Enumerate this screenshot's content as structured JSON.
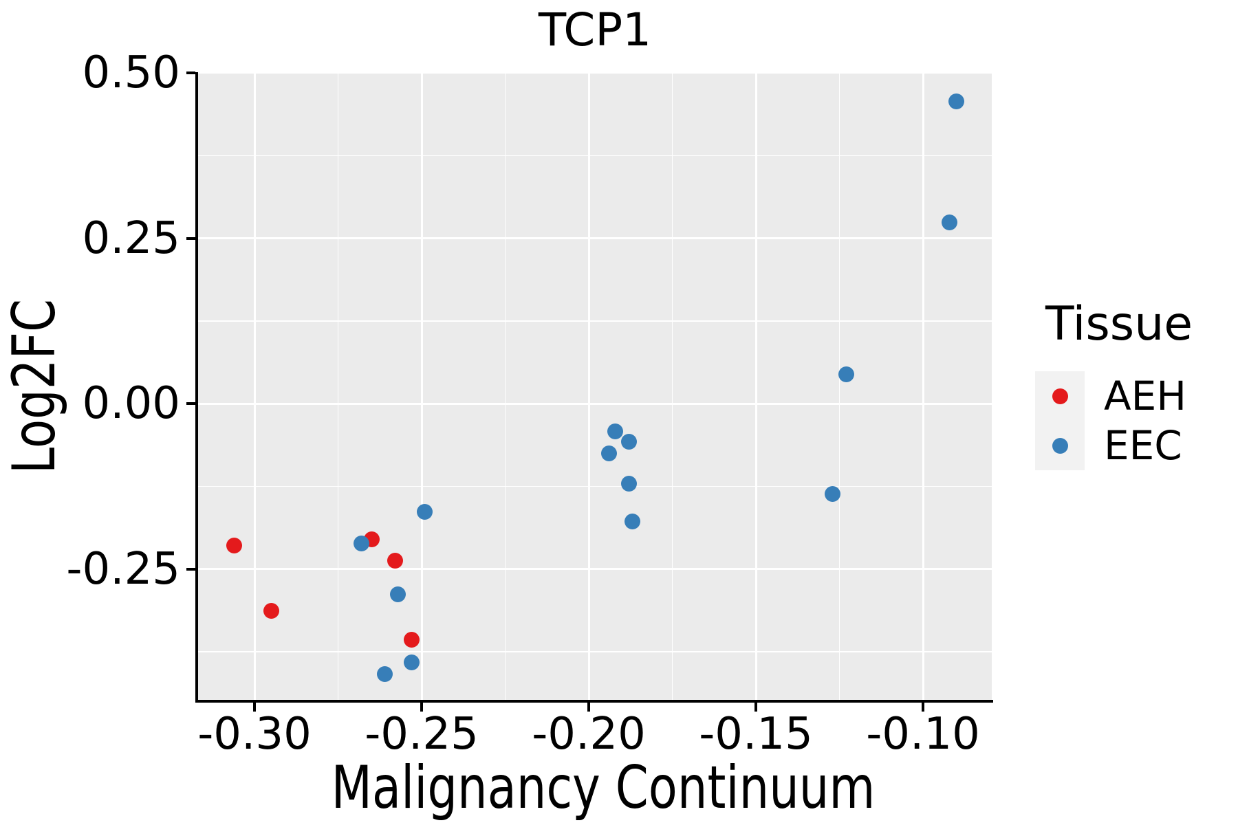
{
  "title": "TCP1",
  "axes": {
    "x": {
      "label": "Malignancy Continuum",
      "tick_labels": [
        "-0.30",
        "-0.25",
        "-0.20",
        "-0.15",
        "-0.10"
      ],
      "ticks": [
        -0.3,
        -0.25,
        -0.2,
        -0.15,
        -0.1
      ]
    },
    "y": {
      "label": "Log2FC",
      "tick_labels": [
        "0.50",
        "0.25",
        "0.00",
        "-0.25"
      ],
      "ticks": [
        0.5,
        0.25,
        0.0,
        -0.25
      ]
    }
  },
  "legend": {
    "title": "Tissue",
    "entries": [
      {
        "label": "AEH",
        "color": "#E41A1C"
      },
      {
        "label": "EEC",
        "color": "#377EB8"
      }
    ]
  },
  "colors": {
    "aeh_red": "#E41A1C",
    "eec_blue": "#377EB8",
    "panel_background": "#EBEBEB",
    "gridline": "#FFFFFF",
    "legend_key_background": "#F2F2F2",
    "axis": "#000000"
  },
  "chart_data": {
    "type": "scatter",
    "title": "TCP1",
    "xlabel": "Malignancy Continuum",
    "ylabel": "Log2FC",
    "xlim": [
      -0.317,
      -0.079
    ],
    "ylim": [
      -0.449,
      0.5
    ],
    "x_ticks": [
      -0.3,
      -0.25,
      -0.2,
      -0.15,
      -0.1
    ],
    "y_ticks": [
      0.5,
      0.25,
      0.0,
      -0.25
    ],
    "grid": "major+minor",
    "legend_title": "Tissue",
    "legend_position": "right",
    "series": [
      {
        "name": "AEH",
        "color": "#E41A1C",
        "points": [
          [
            -0.306,
            -0.215
          ],
          [
            -0.295,
            -0.313
          ],
          [
            -0.265,
            -0.205
          ],
          [
            -0.258,
            -0.238
          ],
          [
            -0.253,
            -0.357
          ]
        ]
      },
      {
        "name": "EEC",
        "color": "#377EB8",
        "points": [
          [
            -0.268,
            -0.212
          ],
          [
            -0.261,
            -0.409
          ],
          [
            -0.257,
            -0.288
          ],
          [
            -0.253,
            -0.391
          ],
          [
            -0.249,
            -0.164
          ],
          [
            -0.194,
            -0.075
          ],
          [
            -0.192,
            -0.042
          ],
          [
            -0.188,
            -0.058
          ],
          [
            -0.188,
            -0.121
          ],
          [
            -0.187,
            -0.178
          ],
          [
            -0.127,
            -0.137
          ],
          [
            -0.123,
            0.044
          ],
          [
            -0.092,
            0.274
          ],
          [
            -0.09,
            0.457
          ]
        ]
      }
    ]
  }
}
